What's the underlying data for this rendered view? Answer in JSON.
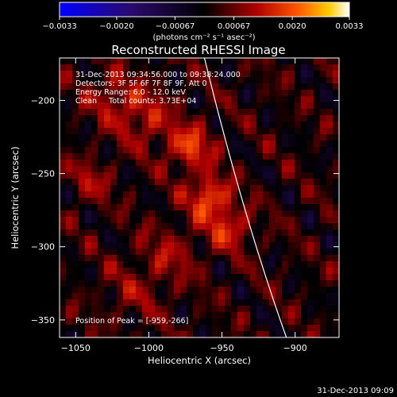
{
  "chart_data": {
    "type": "heatmap",
    "title": "Reconstructed RHESSI Image",
    "xlabel": "Heliocentric X (arcsec)",
    "ylabel": "Heliocentric Y (arcsec)",
    "xlim": [
      -1061,
      -870
    ],
    "ylim": [
      -362,
      -171
    ],
    "x_ticks": [
      -1050,
      -1000,
      -950,
      -900
    ],
    "x_tick_labels": [
      "−1050",
      "−1000",
      "−950",
      "−900"
    ],
    "y_ticks": [
      -350,
      -300,
      -250,
      -200
    ],
    "y_tick_labels": [
      "−350",
      "−300",
      "−250",
      "−200"
    ],
    "colorbar": {
      "range": [
        -0.0033,
        0.0033
      ],
      "ticks": [
        -0.0033,
        -0.002,
        -0.00067,
        0.00067,
        0.002,
        0.0033
      ],
      "tick_labels": [
        "−0.0033",
        "−0.0020",
        "−0.00067",
        "0.00067",
        "0.0020",
        "0.0033"
      ],
      "unit_label": "(photons cm⁻² s⁻¹ asec⁻²)",
      "colormap": "blue-black-red-yellow-white"
    },
    "annotations": [
      "31-Dec-2013 09:34:56.000 to 09:38:24.000",
      "Detectors: 3F 5F 6F 7F 8F 9F, Att 0",
      "Energy Range: 6.0 - 12.0 keV",
      "Clean     Total counts: 3.73E+04"
    ],
    "peak_label": "Position of Peak = [-959,-266]",
    "peak_position": [
      -959,
      -266
    ],
    "sources": [
      {
        "x": -959,
        "y": -266,
        "amplitude": 1.0,
        "sigma": 10
      },
      {
        "x": -972,
        "y": -232,
        "amplitude": 0.85,
        "sigma": 11
      },
      {
        "x": -945,
        "y": -287,
        "amplitude": 0.75,
        "sigma": 10
      },
      {
        "x": -1003,
        "y": -212,
        "amplitude": 0.6,
        "sigma": 13
      },
      {
        "x": -1025,
        "y": -197,
        "amplitude": 0.5,
        "sigma": 12
      },
      {
        "x": -1040,
        "y": -255,
        "amplitude": 0.45,
        "sigma": 10
      },
      {
        "x": -985,
        "y": -305,
        "amplitude": 0.4,
        "sigma": 14
      },
      {
        "x": -1010,
        "y": -330,
        "amplitude": 0.3,
        "sigma": 15
      }
    ],
    "limb_curve": [
      [
        -962,
        -171
      ],
      [
        -945,
        -240
      ],
      [
        -928,
        -300
      ],
      [
        -906,
        -362
      ]
    ],
    "grid": false
  },
  "footer_timestamp": "31-Dec-2013 09:09"
}
